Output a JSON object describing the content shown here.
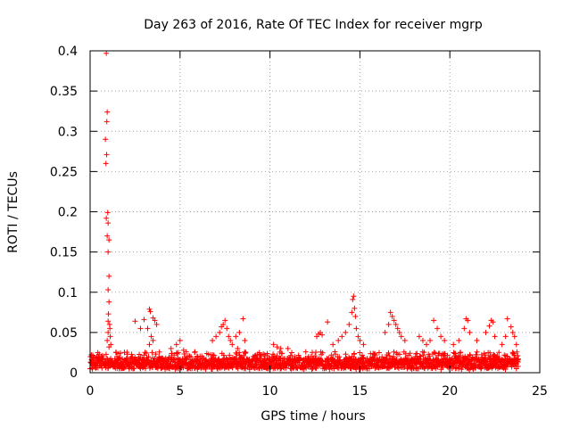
{
  "chart_data": {
    "type": "scatter",
    "title": "Day 263 of 2016, Rate Of TEC Index for receiver mgrp",
    "xlabel": "GPS time / hours",
    "ylabel": "ROTI / TECUs",
    "xlim": [
      0,
      25
    ],
    "ylim": [
      0,
      0.4
    ],
    "grid": true,
    "marker": "plus",
    "marker_color": "#ff0000",
    "xticks": [
      0,
      5,
      10,
      15,
      20,
      25
    ],
    "xtick_labels": [
      "0",
      "5",
      "10",
      "15",
      "20",
      "25"
    ],
    "yticks": [
      0,
      0.05,
      0.1,
      0.15,
      0.2,
      0.25,
      0.3,
      0.35,
      0.4
    ],
    "ytick_labels": [
      "0",
      "0.05",
      "0.1",
      "0.15",
      "0.2",
      "0.25",
      "0.3",
      "0.35",
      "0.4"
    ],
    "series": [
      {
        "name": "ROTI",
        "points": [
          [
            0.9,
            0.397
          ],
          [
            0.95,
            0.324
          ],
          [
            0.93,
            0.312
          ],
          [
            0.85,
            0.29
          ],
          [
            0.92,
            0.271
          ],
          [
            0.88,
            0.26
          ],
          [
            0.98,
            0.199
          ],
          [
            0.9,
            0.192
          ],
          [
            1.0,
            0.186
          ],
          [
            0.95,
            0.17
          ],
          [
            1.05,
            0.165
          ],
          [
            1.0,
            0.15
          ],
          [
            1.05,
            0.12
          ],
          [
            1.0,
            0.103
          ],
          [
            1.05,
            0.088
          ],
          [
            1.02,
            0.073
          ],
          [
            1.0,
            0.064
          ],
          [
            1.08,
            0.06
          ],
          [
            1.1,
            0.055
          ],
          [
            1.0,
            0.05
          ],
          [
            1.12,
            0.045
          ],
          [
            0.95,
            0.04
          ],
          [
            1.15,
            0.035
          ],
          [
            1.05,
            0.032
          ],
          [
            2.5,
            0.064
          ],
          [
            2.8,
            0.055
          ],
          [
            3.0,
            0.066
          ],
          [
            3.3,
            0.079
          ],
          [
            3.35,
            0.076
          ],
          [
            3.5,
            0.068
          ],
          [
            3.6,
            0.065
          ],
          [
            3.7,
            0.06
          ],
          [
            3.2,
            0.055
          ],
          [
            3.4,
            0.045
          ],
          [
            3.5,
            0.04
          ],
          [
            3.3,
            0.035
          ],
          [
            4.5,
            0.03
          ],
          [
            4.8,
            0.035
          ],
          [
            5.0,
            0.04
          ],
          [
            5.2,
            0.028
          ],
          [
            4.9,
            0.025
          ],
          [
            6.8,
            0.04
          ],
          [
            7.0,
            0.045
          ],
          [
            7.2,
            0.05
          ],
          [
            7.3,
            0.057
          ],
          [
            7.5,
            0.065
          ],
          [
            7.4,
            0.06
          ],
          [
            7.6,
            0.055
          ],
          [
            7.7,
            0.045
          ],
          [
            7.8,
            0.04
          ],
          [
            7.9,
            0.035
          ],
          [
            8.1,
            0.045
          ],
          [
            8.3,
            0.05
          ],
          [
            8.5,
            0.067
          ],
          [
            8.6,
            0.04
          ],
          [
            8.2,
            0.03
          ],
          [
            10.2,
            0.035
          ],
          [
            10.4,
            0.032
          ],
          [
            10.6,
            0.03
          ],
          [
            11.0,
            0.03
          ],
          [
            12.6,
            0.045
          ],
          [
            12.7,
            0.048
          ],
          [
            12.8,
            0.05
          ],
          [
            12.9,
            0.047
          ],
          [
            13.2,
            0.063
          ],
          [
            13.5,
            0.035
          ],
          [
            13.8,
            0.04
          ],
          [
            14.0,
            0.045
          ],
          [
            14.2,
            0.05
          ],
          [
            14.4,
            0.06
          ],
          [
            14.55,
            0.075
          ],
          [
            14.6,
            0.091
          ],
          [
            14.65,
            0.095
          ],
          [
            14.7,
            0.08
          ],
          [
            14.75,
            0.07
          ],
          [
            14.8,
            0.055
          ],
          [
            14.9,
            0.045
          ],
          [
            15.0,
            0.04
          ],
          [
            15.2,
            0.035
          ],
          [
            16.4,
            0.05
          ],
          [
            16.6,
            0.06
          ],
          [
            16.7,
            0.075
          ],
          [
            16.8,
            0.07
          ],
          [
            16.9,
            0.065
          ],
          [
            17.0,
            0.06
          ],
          [
            17.1,
            0.055
          ],
          [
            17.2,
            0.05
          ],
          [
            17.3,
            0.045
          ],
          [
            17.5,
            0.04
          ],
          [
            18.3,
            0.045
          ],
          [
            18.5,
            0.04
          ],
          [
            18.7,
            0.035
          ],
          [
            18.9,
            0.04
          ],
          [
            19.1,
            0.065
          ],
          [
            19.3,
            0.055
          ],
          [
            19.5,
            0.045
          ],
          [
            19.7,
            0.04
          ],
          [
            20.2,
            0.035
          ],
          [
            20.5,
            0.04
          ],
          [
            20.8,
            0.055
          ],
          [
            20.9,
            0.067
          ],
          [
            21.0,
            0.065
          ],
          [
            21.1,
            0.05
          ],
          [
            21.5,
            0.04
          ],
          [
            22.0,
            0.05
          ],
          [
            22.2,
            0.058
          ],
          [
            22.3,
            0.065
          ],
          [
            22.4,
            0.063
          ],
          [
            22.5,
            0.045
          ],
          [
            22.9,
            0.035
          ],
          [
            23.1,
            0.045
          ],
          [
            23.2,
            0.067
          ],
          [
            23.4,
            0.057
          ],
          [
            23.5,
            0.05
          ],
          [
            23.6,
            0.045
          ],
          [
            23.7,
            0.035
          ]
        ]
      }
    ]
  }
}
